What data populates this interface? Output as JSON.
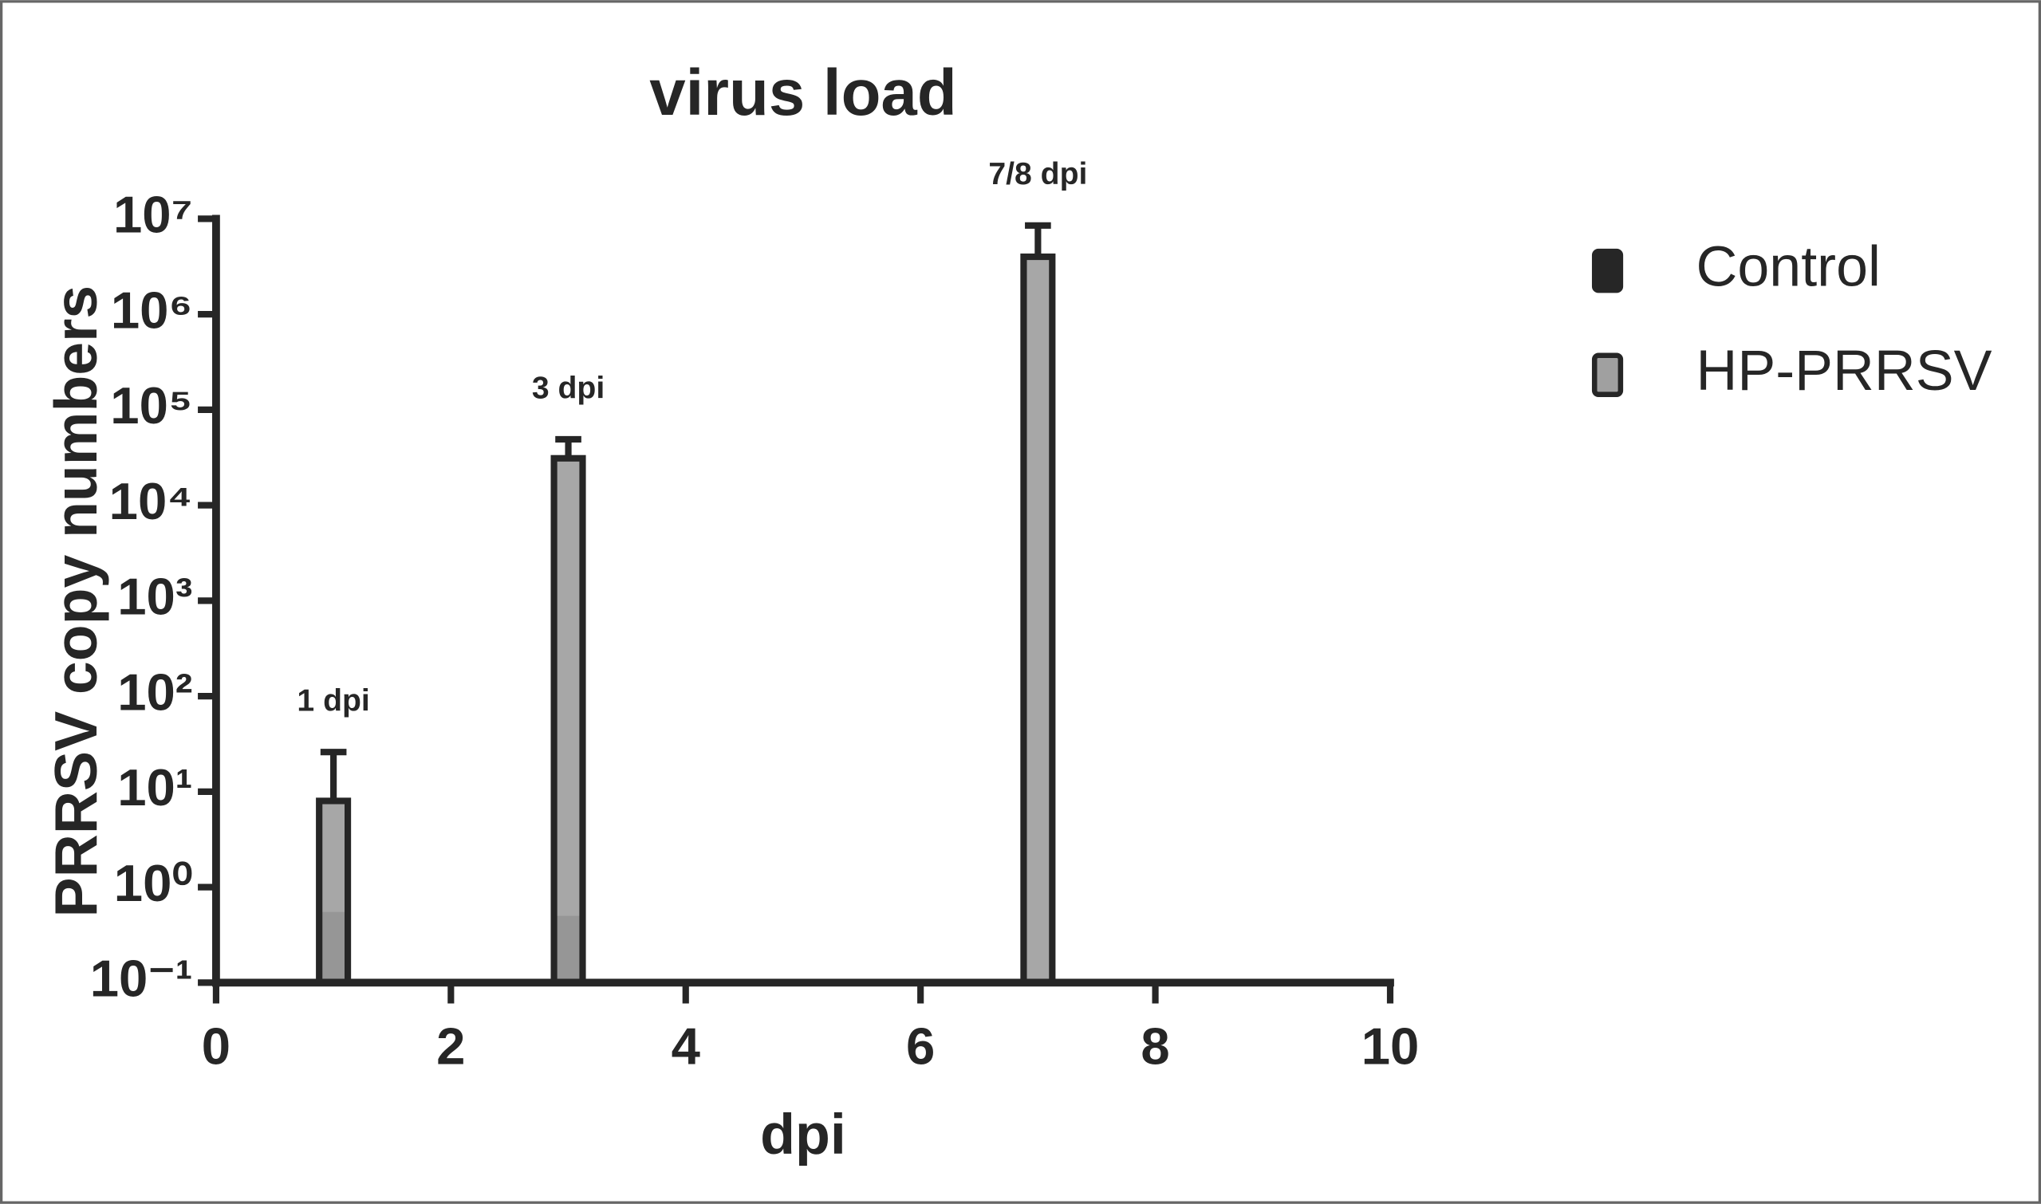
{
  "chart_data": {
    "type": "bar",
    "title": "virus load",
    "x_label": "dpi",
    "y_label": "PRRSV copy numbers",
    "x": [
      1,
      3,
      7
    ],
    "series": [
      {
        "name": "Control",
        "color": "#262626",
        "values": [
          0.55,
          0.5,
          0.1
        ]
      },
      {
        "name": "HP-PRRSV",
        "color": "#a0a0a0",
        "values": [
          8,
          31000,
          4000000
        ],
        "errors": [
          18,
          18000,
          4500000
        ]
      }
    ],
    "annotations": [
      "1 dpi",
      "3 dpi",
      "7/8 dpi"
    ],
    "xlim": [
      0,
      10
    ],
    "xticks": [
      0,
      2,
      4,
      6,
      8,
      10
    ],
    "ylim": [
      0.1,
      10000000
    ],
    "log_y": true,
    "yticks": [
      {
        "value": 0.1,
        "label": "10⁻¹"
      },
      {
        "value": 1,
        "label": "10⁰"
      },
      {
        "value": 10,
        "label": "10¹"
      },
      {
        "value": 100,
        "label": "10²"
      },
      {
        "value": 1000,
        "label": "10³"
      },
      {
        "value": 10000,
        "label": "10⁴"
      },
      {
        "value": 100000,
        "label": "10⁵"
      },
      {
        "value": 1000000,
        "label": "10⁶"
      },
      {
        "value": 10000000,
        "label": "10⁷"
      }
    ],
    "legend": "upper right",
    "grid": false
  }
}
